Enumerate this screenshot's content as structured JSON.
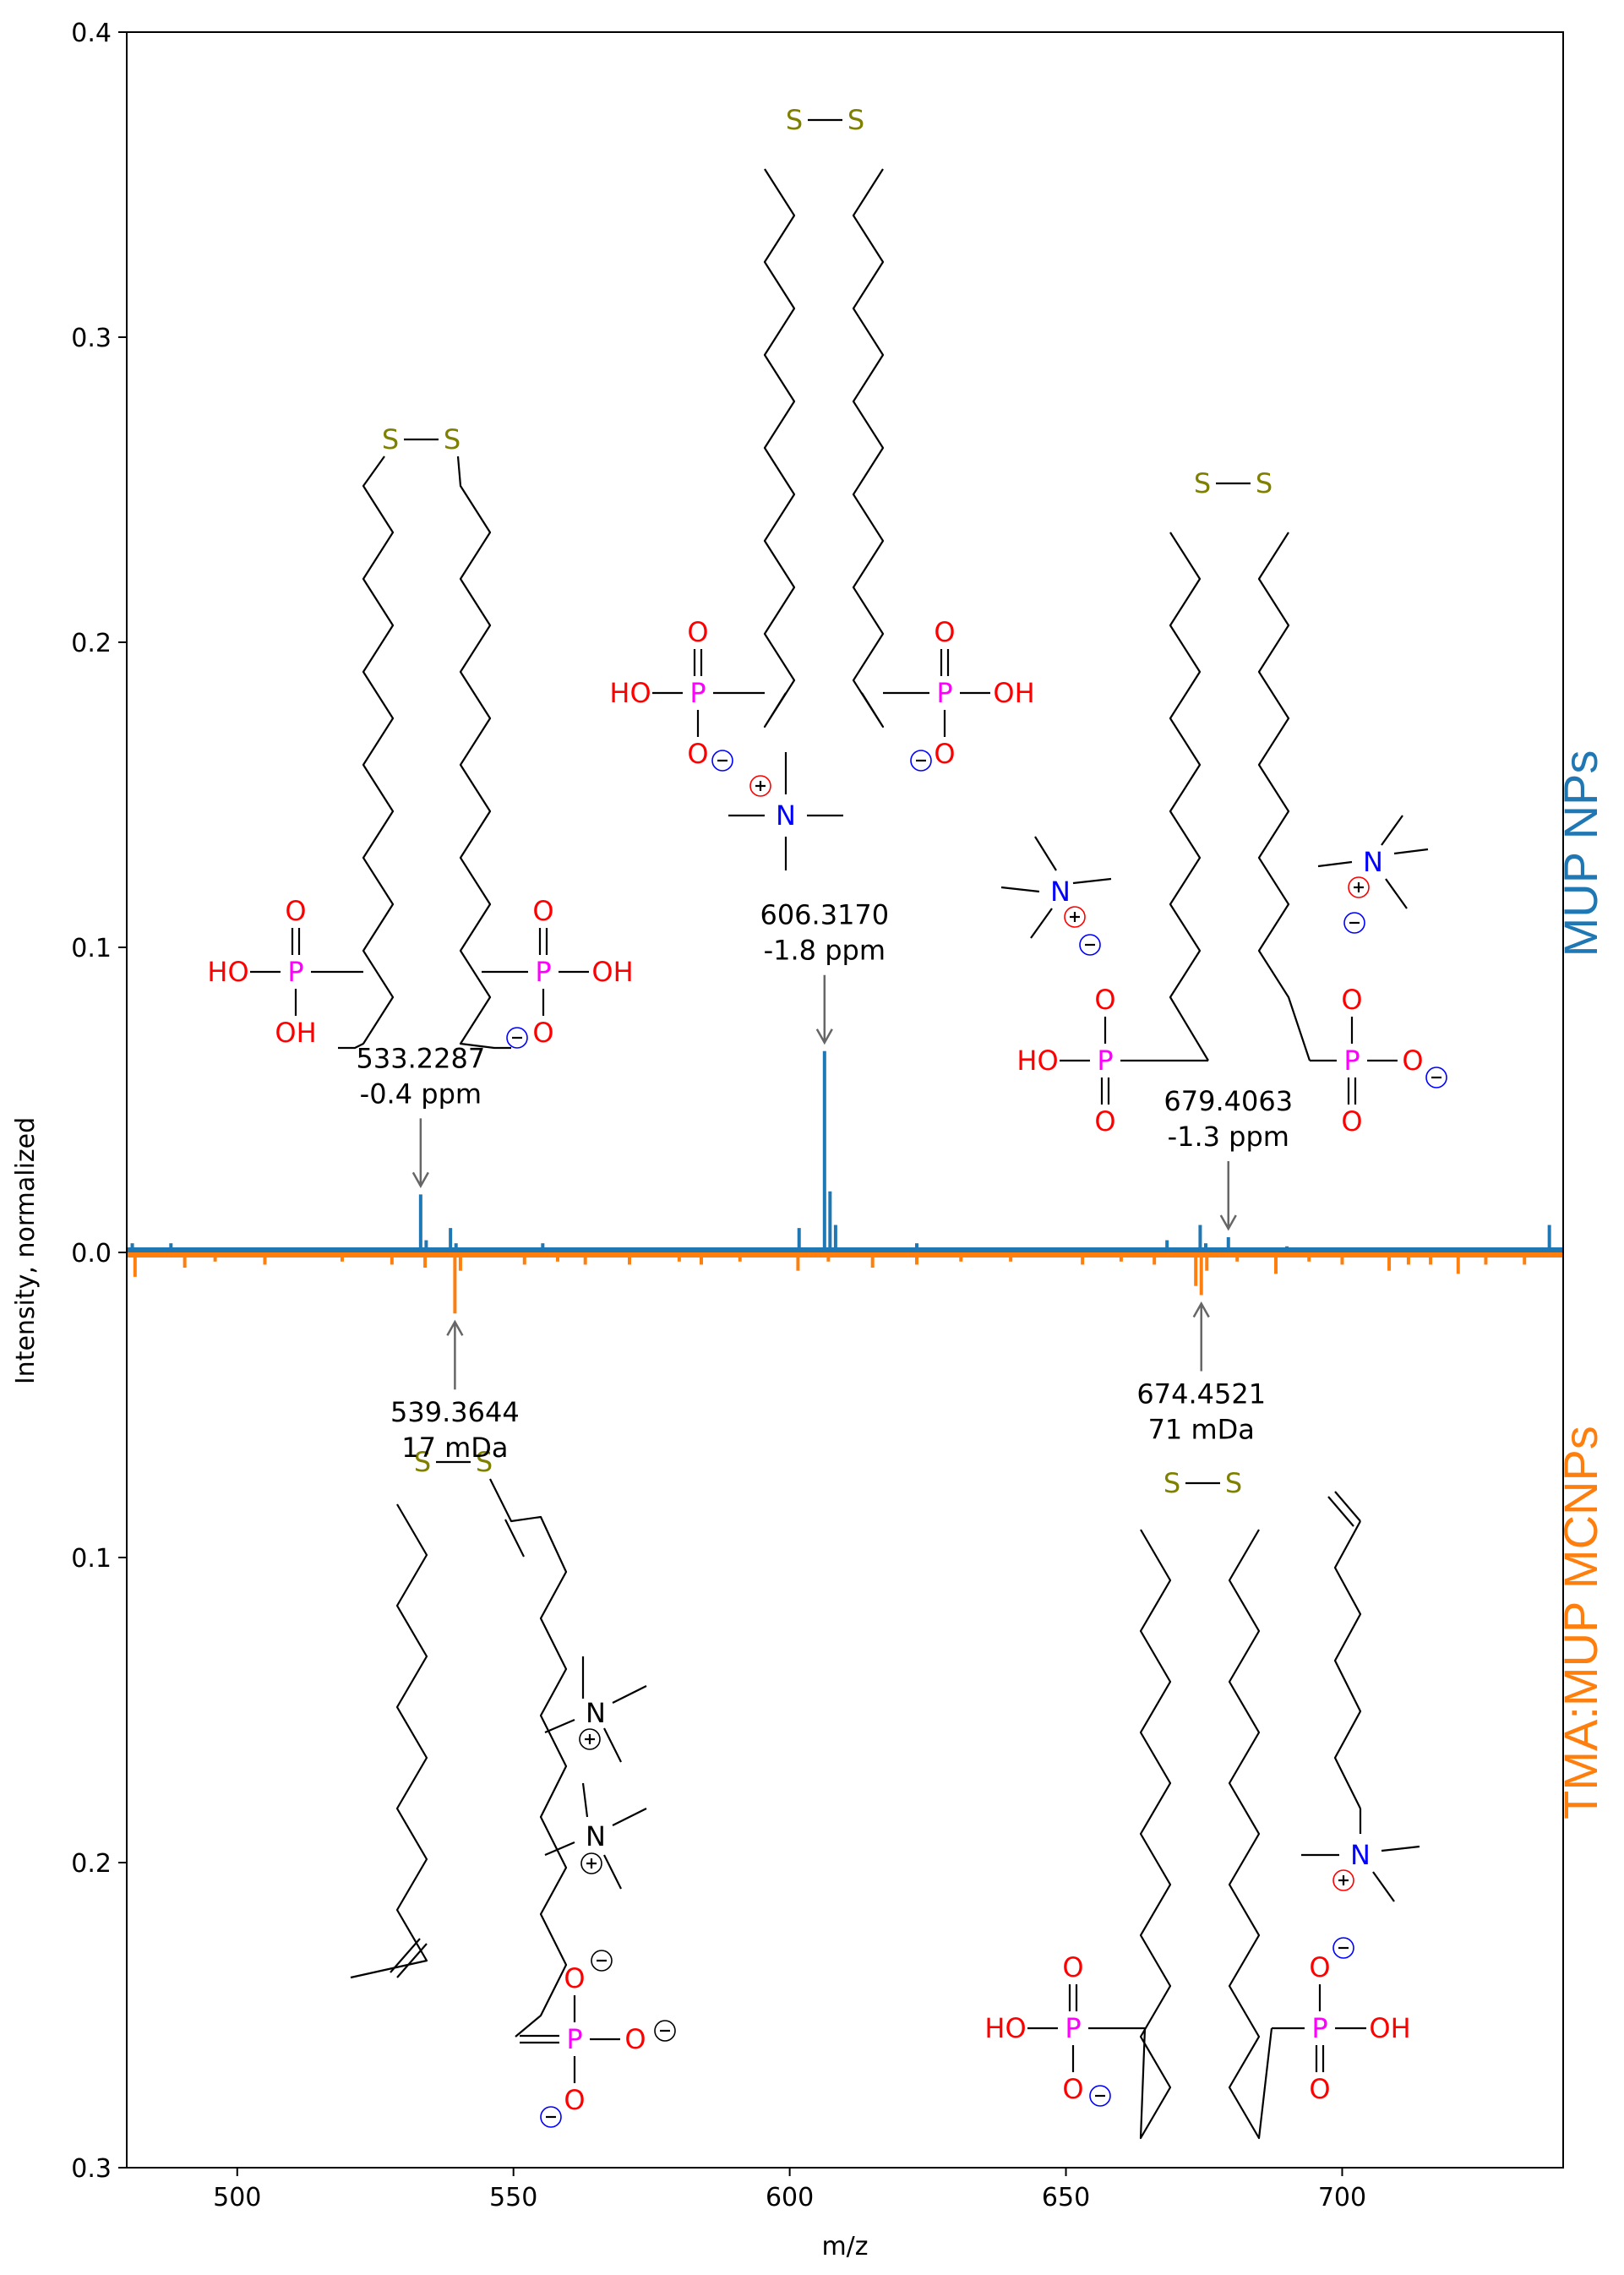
{
  "chart_data": {
    "type": "line",
    "title": "",
    "xlabel": "m/z",
    "ylabel": "Intensity, normalized",
    "xlim": [
      480,
      740
    ],
    "ylim_top": [
      0,
      0.4
    ],
    "ylim_bottom": [
      0,
      0.3
    ],
    "x_ticks": [
      500,
      550,
      600,
      650,
      700
    ],
    "y_ticks_top": [
      0.0,
      0.1,
      0.2,
      0.3,
      0.4
    ],
    "y_ticks_top_labels": [
      "0.0",
      "0.1",
      "0.2",
      "0.3",
      "0.4"
    ],
    "y_ticks_bottom": [
      0.1,
      0.2,
      0.3
    ],
    "y_ticks_bottom_labels": [
      "0.1",
      "0.2",
      "0.3"
    ],
    "series": [
      {
        "name": "MUP NPs",
        "color": "#1f77b4",
        "direction": "up",
        "peaks": [
          {
            "x": 481.0,
            "y": 0.003
          },
          {
            "x": 488.0,
            "y": 0.003
          },
          {
            "x": 533.2,
            "y": 0.019
          },
          {
            "x": 534.2,
            "y": 0.004
          },
          {
            "x": 538.6,
            "y": 0.008
          },
          {
            "x": 539.6,
            "y": 0.003
          },
          {
            "x": 555.3,
            "y": 0.003
          },
          {
            "x": 601.7,
            "y": 0.008
          },
          {
            "x": 606.3,
            "y": 0.066
          },
          {
            "x": 607.3,
            "y": 0.02
          },
          {
            "x": 608.3,
            "y": 0.009
          },
          {
            "x": 623.0,
            "y": 0.003
          },
          {
            "x": 668.3,
            "y": 0.004
          },
          {
            "x": 674.3,
            "y": 0.009
          },
          {
            "x": 675.3,
            "y": 0.003
          },
          {
            "x": 679.4,
            "y": 0.005
          },
          {
            "x": 690.0,
            "y": 0.002
          },
          {
            "x": 737.5,
            "y": 0.009
          }
        ]
      },
      {
        "name": "TMA:MUP MCNPs",
        "color": "#ff7f0e",
        "direction": "down",
        "peaks": [
          {
            "x": 481.5,
            "y": 0.008
          },
          {
            "x": 490.5,
            "y": 0.005
          },
          {
            "x": 496.0,
            "y": 0.003
          },
          {
            "x": 505.0,
            "y": 0.004
          },
          {
            "x": 519.0,
            "y": 0.003
          },
          {
            "x": 528.0,
            "y": 0.004
          },
          {
            "x": 534.0,
            "y": 0.005
          },
          {
            "x": 539.4,
            "y": 0.02
          },
          {
            "x": 540.4,
            "y": 0.006
          },
          {
            "x": 552.0,
            "y": 0.004
          },
          {
            "x": 558.0,
            "y": 0.003
          },
          {
            "x": 563.0,
            "y": 0.004
          },
          {
            "x": 571.0,
            "y": 0.004
          },
          {
            "x": 580.0,
            "y": 0.003
          },
          {
            "x": 584.0,
            "y": 0.004
          },
          {
            "x": 591.0,
            "y": 0.003
          },
          {
            "x": 601.5,
            "y": 0.006
          },
          {
            "x": 607.0,
            "y": 0.003
          },
          {
            "x": 615.0,
            "y": 0.005
          },
          {
            "x": 623.0,
            "y": 0.004
          },
          {
            "x": 631.0,
            "y": 0.003
          },
          {
            "x": 640.0,
            "y": 0.003
          },
          {
            "x": 653.0,
            "y": 0.004
          },
          {
            "x": 660.0,
            "y": 0.003
          },
          {
            "x": 666.0,
            "y": 0.004
          },
          {
            "x": 673.5,
            "y": 0.011
          },
          {
            "x": 674.5,
            "y": 0.014
          },
          {
            "x": 675.5,
            "y": 0.006
          },
          {
            "x": 681.0,
            "y": 0.003
          },
          {
            "x": 688.0,
            "y": 0.007
          },
          {
            "x": 694.0,
            "y": 0.003
          },
          {
            "x": 700.0,
            "y": 0.004
          },
          {
            "x": 708.5,
            "y": 0.006
          },
          {
            "x": 712.0,
            "y": 0.004
          },
          {
            "x": 716.0,
            "y": 0.004
          },
          {
            "x": 721.0,
            "y": 0.007
          },
          {
            "x": 726.0,
            "y": 0.004
          },
          {
            "x": 733.0,
            "y": 0.004
          }
        ]
      }
    ],
    "annotations": [
      {
        "id": "a533",
        "series": "MUP NPs",
        "x": 533.2,
        "lines": [
          "533.2287",
          "-0.4 ppm"
        ]
      },
      {
        "id": "a606",
        "series": "MUP NPs",
        "x": 606.3,
        "lines": [
          "606.3170",
          "-1.8 ppm"
        ]
      },
      {
        "id": "a679",
        "series": "MUP NPs",
        "x": 679.4,
        "lines": [
          "679.4063",
          "-1.3 ppm"
        ]
      },
      {
        "id": "a539",
        "series": "TMA:MUP MCNPs",
        "x": 539.4,
        "lines": [
          "539.3644",
          "17 mDa"
        ]
      },
      {
        "id": "a674",
        "series": "TMA:MUP MCNPs",
        "x": 674.5,
        "lines": [
          "674.4521",
          "71 mDa"
        ]
      }
    ],
    "grid": false,
    "legend": "none"
  },
  "side_labels": {
    "top": {
      "text": "MUP NPs",
      "color": "#1f77b4"
    },
    "bottom": {
      "text": "TMA:MUP MCNPs",
      "color": "#ff7f0e"
    }
  },
  "atoms": {
    "S": "S",
    "P": "P",
    "O": "O",
    "N": "N",
    "HO": "HO",
    "OH": "OH",
    "colors": {
      "S": "#808000",
      "P": "#ff00ff",
      "O": "#ff0000",
      "N": "#0000ff",
      "plus_top": "#ff0000",
      "minus_top": "#0000ff"
    }
  }
}
